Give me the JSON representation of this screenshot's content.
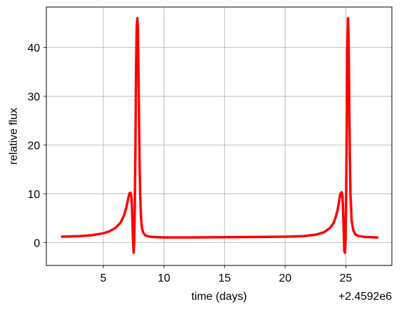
{
  "chart_data": {
    "type": "line",
    "title": "",
    "xlabel": "time (days)",
    "ylabel": "relative flux",
    "x_offset_label": "+2.4592e6",
    "xlim": [
      0.3,
      28.8
    ],
    "ylim": [
      -4.7,
      48.3
    ],
    "x_ticks": [
      5,
      10,
      15,
      20,
      25
    ],
    "y_ticks": [
      0,
      10,
      20,
      30,
      40
    ],
    "x_tick_labels": [
      "5",
      "10",
      "15",
      "20",
      "25"
    ],
    "y_tick_labels": [
      "0",
      "10",
      "20",
      "30",
      "40"
    ],
    "grid": true,
    "line_color": "#ff0000",
    "series": [
      {
        "x": [
          1.6,
          3.0,
          4.0,
          5.0,
          5.5,
          6.0,
          6.4,
          6.7,
          6.9,
          7.05,
          7.15,
          7.25,
          7.32,
          7.38,
          7.45,
          7.5,
          7.55,
          7.6,
          7.65,
          7.7,
          7.75,
          7.8,
          7.85,
          7.9,
          7.95,
          8.0,
          8.05,
          8.1,
          8.15,
          8.2,
          8.3,
          8.45,
          8.65,
          9.0,
          9.5,
          10.0,
          12.0,
          15.0,
          18.0,
          20.0,
          21.5,
          22.5,
          23.2,
          23.7,
          24.0,
          24.2,
          24.35,
          24.45,
          24.52,
          24.6,
          24.66,
          24.72,
          24.78,
          24.83,
          24.88,
          24.93,
          24.98,
          25.03,
          25.08,
          25.13,
          25.18,
          25.23,
          25.28,
          25.33,
          25.38,
          25.48,
          25.62,
          25.8,
          26.1,
          26.6,
          27.6
        ],
        "y": [
          1.2,
          1.3,
          1.5,
          1.9,
          2.3,
          3.0,
          4.0,
          5.5,
          7.2,
          9.0,
          10.1,
          10.2,
          9.3,
          6.0,
          0.5,
          -2.1,
          0.5,
          8.0,
          20.0,
          35.0,
          44.0,
          46.0,
          44.0,
          35.0,
          24.0,
          15.0,
          9.0,
          5.5,
          3.8,
          2.8,
          2.0,
          1.5,
          1.3,
          1.15,
          1.1,
          1.05,
          1.05,
          1.1,
          1.15,
          1.2,
          1.3,
          1.6,
          2.1,
          3.0,
          4.0,
          5.5,
          7.0,
          8.5,
          9.6,
          10.2,
          10.3,
          9.5,
          6.5,
          2.0,
          -1.8,
          -2.1,
          0.5,
          10.0,
          25.0,
          40.0,
          46.0,
          42.0,
          30.0,
          18.0,
          10.0,
          4.5,
          2.5,
          1.6,
          1.3,
          1.15,
          1.05
        ]
      }
    ]
  }
}
